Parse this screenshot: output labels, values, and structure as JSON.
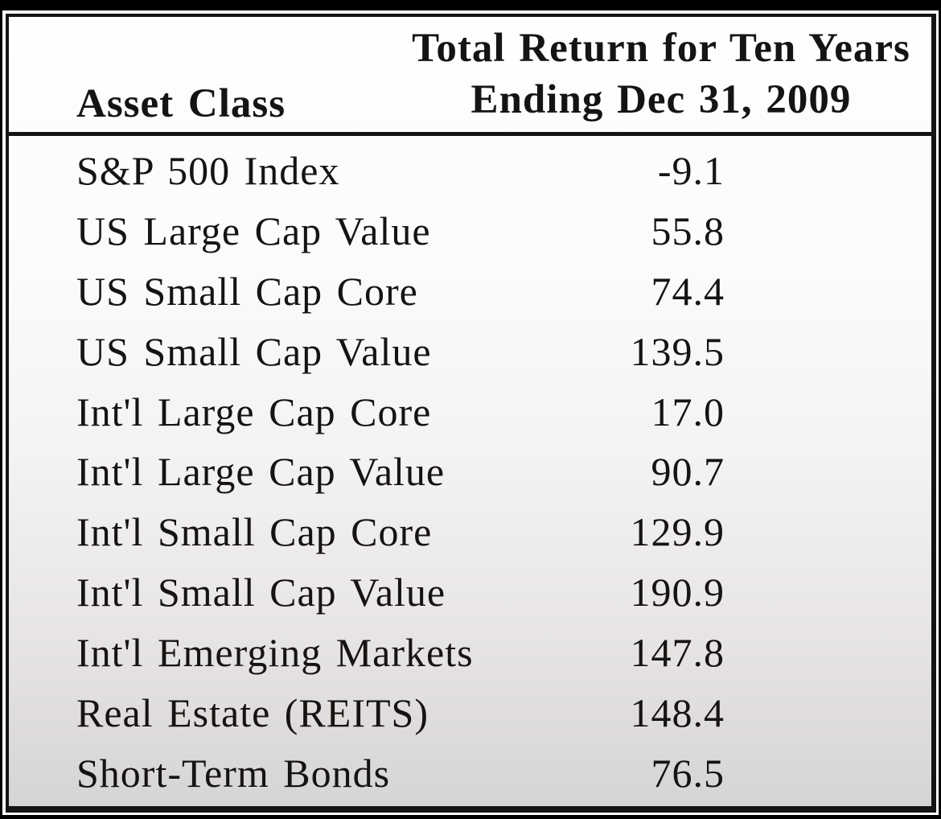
{
  "table": {
    "header": {
      "asset_class_label": "Asset Class",
      "return_label_line1": "Total Return for Ten Years",
      "return_label_line2": "Ending Dec 31, 2009"
    },
    "rows": [
      {
        "asset_class": "S&P 500 Index",
        "total_return": "-9.1"
      },
      {
        "asset_class": "US Large Cap Value",
        "total_return": "55.8"
      },
      {
        "asset_class": "US Small Cap Core",
        "total_return": "74.4"
      },
      {
        "asset_class": "US Small Cap Value",
        "total_return": "139.5"
      },
      {
        "asset_class": "Int'l Large Cap Core",
        "total_return": "17.0"
      },
      {
        "asset_class": "Int'l Large Cap Value",
        "total_return": "90.7"
      },
      {
        "asset_class": "Int'l Small Cap Core",
        "total_return": "129.9"
      },
      {
        "asset_class": "Int'l Small Cap Value",
        "total_return": "190.9"
      },
      {
        "asset_class": "Int'l Emerging Markets",
        "total_return": "147.8"
      },
      {
        "asset_class": "Real Estate (REITS)",
        "total_return": "148.4"
      },
      {
        "asset_class": "Short-Term Bonds",
        "total_return": "76.5"
      }
    ]
  },
  "chart_data": {
    "type": "table",
    "title": "Total Return for Ten Years Ending Dec 31, 2009",
    "columns": [
      "Asset Class",
      "Total Return for Ten Years Ending Dec 31, 2009"
    ],
    "rows": [
      [
        "S&P 500 Index",
        -9.1
      ],
      [
        "US Large Cap Value",
        55.8
      ],
      [
        "US Small Cap Core",
        74.4
      ],
      [
        "US Small Cap Value",
        139.5
      ],
      [
        "Int'l Large Cap Core",
        17.0
      ],
      [
        "Int'l Large Cap Value",
        90.7
      ],
      [
        "Int'l Small Cap Core",
        129.9
      ],
      [
        "Int'l Small Cap Value",
        190.9
      ],
      [
        "Int'l Emerging Markets",
        147.8
      ],
      [
        "Real Estate (REITS)",
        148.4
      ],
      [
        "Short-Term Bonds",
        76.5
      ]
    ]
  },
  "colors": {
    "background": "#000000",
    "table_border": "#141414",
    "text": "#161412",
    "surface_top": "#ffffff",
    "surface_bottom": "#d6d4d4"
  }
}
